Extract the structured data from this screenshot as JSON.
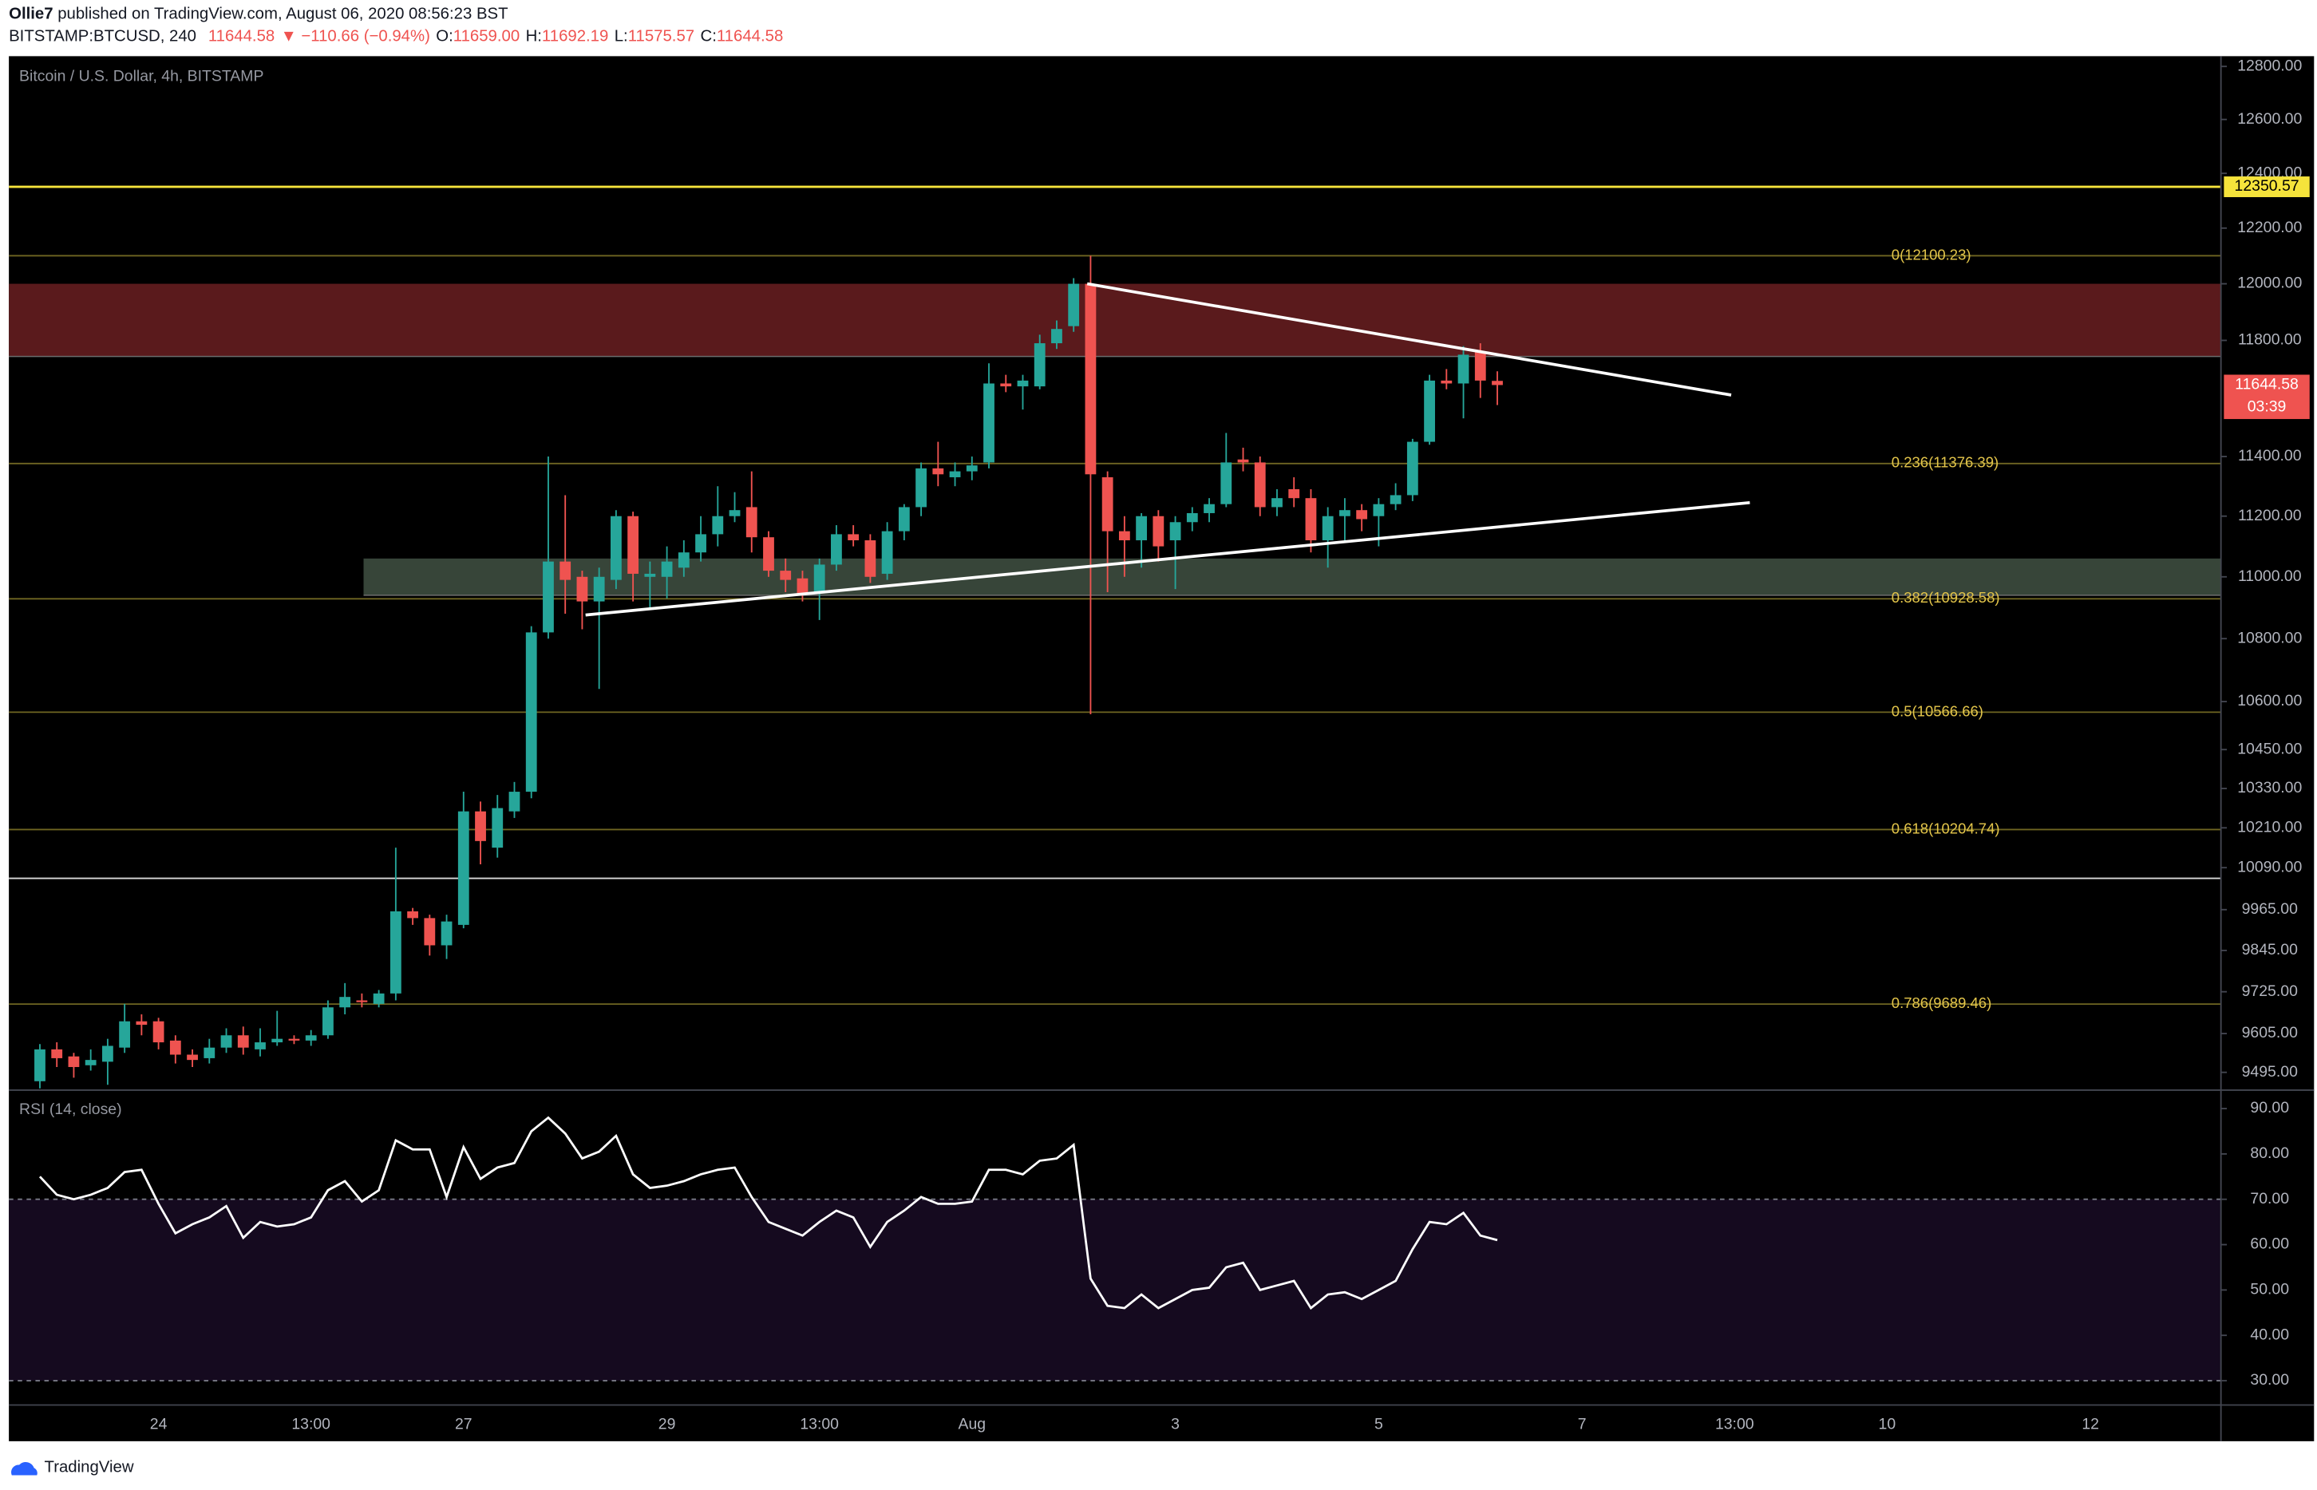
{
  "header": {
    "author": "Ollie7",
    "published": "published on TradingView.com, August 06, 2020 08:56:23 BST",
    "symbol": "BITSTAMP:BTCUSD, 240",
    "change": "▼ −110.66 (−0.94%)",
    "o_label": "O:",
    "o_value": "11659.00",
    "h_label": "H:",
    "l_label": "L:",
    "c_label": "C:"
  },
  "footer": "TradingView",
  "chart_data": [
    {
      "type": "candlestick",
      "title": "Bitcoin / U.S. Dollar, 4h, BITSTAMP",
      "log_scale": true,
      "grid": false,
      "up_color": "#26a69a",
      "down_color": "#ef5350",
      "open": [
        9470,
        9560,
        9540,
        9515,
        9525,
        9565,
        9640,
        9640,
        9585,
        9545,
        9535,
        9565,
        9600,
        9560,
        9580,
        9590,
        9585,
        9600,
        9680,
        9700,
        9690,
        9720,
        9960,
        9940,
        9860,
        9920,
        10260,
        10150,
        10260,
        10320,
        10820,
        11050,
        11000,
        10920,
        10990,
        11200,
        11000,
        11000,
        11030,
        11080,
        11140,
        11200,
        11230,
        11130,
        11020,
        10995,
        10950,
        11040,
        11140,
        11120,
        11010,
        11150,
        11230,
        11360,
        11330,
        11350,
        11380,
        11650,
        11640,
        11640,
        11790,
        11850,
        12000,
        11330,
        11150,
        11120,
        11200,
        11120,
        11180,
        11210,
        11240,
        11390,
        11380,
        11230,
        11290,
        11260,
        11120,
        11200,
        11220,
        11200,
        11240,
        11270,
        11450,
        11660,
        11650,
        11760,
        11659
      ],
      "high": [
        9575,
        9580,
        9550,
        9560,
        9590,
        9690,
        9660,
        9650,
        9600,
        9560,
        9590,
        9620,
        9625,
        9620,
        9670,
        9600,
        9615,
        9700,
        9750,
        9720,
        9730,
        10150,
        9970,
        9950,
        9950,
        10320,
        10290,
        10310,
        10350,
        10840,
        11400,
        11270,
        11020,
        11030,
        11220,
        11215,
        11050,
        11100,
        11120,
        11200,
        11300,
        11280,
        11350,
        11150,
        11060,
        11020,
        11060,
        11170,
        11170,
        11140,
        11180,
        11240,
        11380,
        11450,
        11380,
        11400,
        11720,
        11680,
        11680,
        11820,
        11870,
        12020,
        12100,
        11350,
        11200,
        11210,
        11220,
        11200,
        11230,
        11260,
        11480,
        11430,
        11400,
        11290,
        11330,
        11290,
        11230,
        11260,
        11240,
        11260,
        11310,
        11460,
        11680,
        11700,
        11780,
        11790,
        11692.19
      ],
      "low": [
        9450,
        9510,
        9480,
        9500,
        9460,
        9550,
        9600,
        9560,
        9520,
        9510,
        9520,
        9550,
        9545,
        9540,
        9570,
        9575,
        9570,
        9590,
        9660,
        9680,
        9680,
        9700,
        9920,
        9830,
        9820,
        9910,
        10100,
        10120,
        10240,
        10300,
        10800,
        10880,
        10830,
        10640,
        10960,
        10920,
        10900,
        10930,
        11000,
        11050,
        11100,
        11180,
        11080,
        11000,
        10950,
        10920,
        10860,
        11020,
        11100,
        10980,
        10990,
        11120,
        11200,
        11300,
        11300,
        11320,
        11360,
        11620,
        11560,
        11630,
        11770,
        11830,
        10560,
        10950,
        11000,
        11030,
        11050,
        10960,
        11150,
        11180,
        11230,
        11350,
        11200,
        11200,
        11230,
        11080,
        11030,
        11120,
        11150,
        11100,
        11220,
        11250,
        11440,
        11630,
        11530,
        11600,
        11575.57
      ],
      "close": [
        9560,
        9535,
        9510,
        9530,
        9570,
        9640,
        9630,
        9580,
        9545,
        9530,
        9565,
        9600,
        9565,
        9580,
        9590,
        9585,
        9600,
        9680,
        9710,
        9695,
        9720,
        9960,
        9940,
        9860,
        9930,
        10260,
        10170,
        10270,
        10320,
        10820,
        11050,
        10990,
        10920,
        11000,
        11200,
        11010,
        11010,
        11050,
        11080,
        11140,
        11200,
        11220,
        11130,
        11020,
        10990,
        10945,
        11040,
        11140,
        11120,
        11000,
        11150,
        11230,
        11360,
        11340,
        11350,
        11370,
        11650,
        11640,
        11660,
        11790,
        11840,
        12000,
        11340,
        11150,
        11120,
        11200,
        11100,
        11180,
        11210,
        11240,
        11380,
        11380,
        11230,
        11260,
        11260,
        11120,
        11200,
        11220,
        11190,
        11240,
        11270,
        11450,
        11660,
        11650,
        11750,
        11660,
        11644.58
      ],
      "countdown": "03:39",
      "xlim": [
        -1.83,
        128.7
      ],
      "xticks": [
        {
          "value": 7,
          "label": "24"
        },
        {
          "value": 16,
          "label": "13:00"
        },
        {
          "value": 25,
          "label": "27"
        },
        {
          "value": 37,
          "label": "29"
        },
        {
          "value": 46,
          "label": "13:00"
        },
        {
          "value": 55,
          "label": "Aug"
        },
        {
          "value": 67,
          "label": "3"
        },
        {
          "value": 79,
          "label": "5"
        },
        {
          "value": 91,
          "label": "7"
        },
        {
          "value": 100,
          "label": "13:00"
        },
        {
          "value": 109,
          "label": "10"
        },
        {
          "value": 121,
          "label": "12"
        }
      ],
      "ylim": [
        9447,
        12839
      ],
      "yticks": [
        {
          "value": 12800,
          "label": "12800.00"
        },
        {
          "value": 12600,
          "label": "12600.00"
        },
        {
          "value": 12400,
          "label": "12400.00"
        },
        {
          "value": 12200,
          "label": "12200.00"
        },
        {
          "value": 12000,
          "label": "12000.00"
        },
        {
          "value": 11800,
          "label": "11800.00"
        },
        {
          "value": 11400,
          "label": "11400.00"
        },
        {
          "value": 11200,
          "label": "11200.00"
        },
        {
          "value": 11000,
          "label": "11000.00"
        },
        {
          "value": 10800,
          "label": "10800.00"
        },
        {
          "value": 10600,
          "label": "10600.00"
        },
        {
          "value": 10450,
          "label": "10450.00"
        },
        {
          "value": 10330,
          "label": "10330.00"
        },
        {
          "value": 10210,
          "label": "10210.00"
        },
        {
          "value": 10090,
          "label": "10090.00"
        },
        {
          "value": 9965,
          "label": "9965.00"
        },
        {
          "value": 9845,
          "label": "9845.00"
        },
        {
          "value": 9725,
          "label": "9725.00"
        },
        {
          "value": 9605,
          "label": "9605.00"
        },
        {
          "value": 9495,
          "label": "9495.00"
        }
      ],
      "zones": [
        {
          "from": 11744,
          "to": 12000,
          "start": -1.83,
          "color": "#5a1a1c"
        },
        {
          "from": 10940,
          "to": 11060,
          "start": 19.1,
          "color": "#374539"
        }
      ],
      "levels": [
        {
          "label": "0(12100.23)",
          "value": 12100.23
        },
        {
          "label": "0.236(11376.39)",
          "value": 11376.39
        },
        {
          "label": "0.382(10928.58)",
          "value": 10928.58
        },
        {
          "label": "0.5(10566.66)",
          "value": 10566.66
        },
        {
          "label": "0.618(10204.74)",
          "value": 10204.74
        },
        {
          "label": "0.786(9689.46)",
          "value": 9689.46
        }
      ],
      "level_color": "#6f6622",
      "level_text_color": "#e3c54a",
      "lines": [
        {
          "value": 12350.57,
          "color": "#f5e33b"
        },
        {
          "value": 10058,
          "color": "#d8d8d8"
        }
      ],
      "trendlines": [
        {
          "x": [
            61.8,
            99.8
          ],
          "y": [
            12000,
            11610
          ]
        },
        {
          "x": [
            32.2,
            100.9
          ],
          "y": [
            10876,
            11245
          ]
        }
      ]
    },
    {
      "type": "line",
      "title": "RSI (14, close)",
      "color": "#ffffff",
      "values": [
        75,
        71,
        70,
        71,
        72.5,
        76,
        76.5,
        69,
        62.5,
        64.5,
        66,
        68.5,
        61.5,
        65,
        64,
        64.5,
        66,
        72,
        74,
        69.5,
        72,
        83,
        81,
        81,
        70.5,
        81.5,
        74.5,
        77,
        78,
        85,
        88,
        84.5,
        79,
        80.5,
        84,
        75.5,
        72.5,
        73,
        74,
        75.5,
        76.5,
        77,
        70.5,
        65,
        63.5,
        62,
        65,
        67.5,
        66,
        59.5,
        65,
        67.5,
        70.5,
        69,
        69,
        69.5,
        76.5,
        76.5,
        75.5,
        78.5,
        79,
        82,
        52.5,
        46.5,
        46,
        49,
        46,
        48,
        50,
        50.5,
        55,
        56,
        50,
        51,
        52,
        46,
        49,
        49.5,
        48,
        50,
        52,
        59,
        65,
        64.5,
        67,
        62,
        61
      ],
      "ylim": [
        24.8,
        93.9
      ],
      "yticks": [
        {
          "value": 30,
          "label": "30.00"
        },
        {
          "value": 40,
          "label": "40.00"
        },
        {
          "value": 50,
          "label": "50.00"
        },
        {
          "value": 60,
          "label": "60.00"
        },
        {
          "value": 70,
          "label": "70.00"
        },
        {
          "value": 80,
          "label": "80.00"
        },
        {
          "value": 90,
          "label": "90.00"
        }
      ],
      "band": {
        "from": 30,
        "to": 70,
        "color": "#150a1f"
      }
    }
  ]
}
